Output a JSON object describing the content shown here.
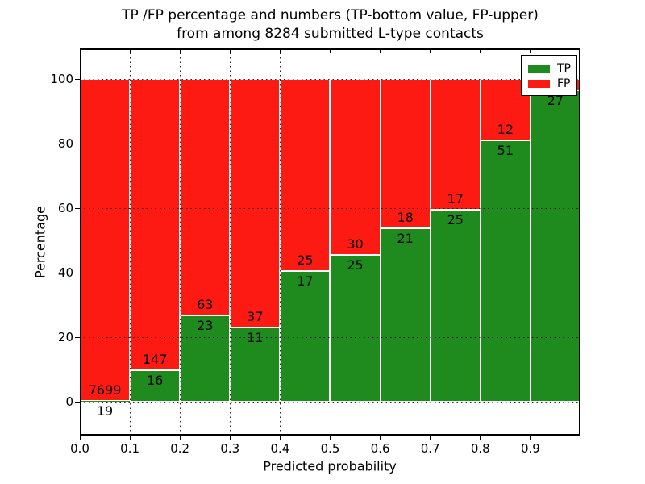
{
  "chart_data": {
    "type": "bar",
    "stacked": true,
    "normalized": "percent",
    "title_lines": [
      "TP /FP percentage and numbers (TP-bottom value, FP-upper)",
      "from among 8284 submitted L-type contacts"
    ],
    "xlabel": "Predicted probability",
    "ylabel": "Percentage",
    "total_contacts": 8284,
    "bin_edges": [
      0.0,
      0.1,
      0.2,
      0.3,
      0.4,
      0.5,
      0.6,
      0.7,
      0.8,
      0.9,
      1.0
    ],
    "series": [
      {
        "name": "TP",
        "color": "#1f8b1f",
        "values": [
          19,
          16,
          23,
          11,
          17,
          25,
          21,
          25,
          51,
          27
        ]
      },
      {
        "name": "FP",
        "color": "#fc1a13",
        "values": [
          7699,
          147,
          63,
          37,
          25,
          30,
          18,
          17,
          12,
          1
        ]
      }
    ],
    "tp_percent": [
      0.25,
      9.82,
      26.74,
      22.92,
      40.48,
      45.45,
      53.85,
      59.52,
      80.95,
      96.43
    ],
    "fp_label_hidden_behind_legend_bins": [
      9
    ],
    "xticks": [
      "0.0",
      "0.1",
      "0.2",
      "0.3",
      "0.4",
      "0.5",
      "0.6",
      "0.7",
      "0.8",
      "0.9"
    ],
    "yticks": [
      "0",
      "20",
      "40",
      "60",
      "80",
      "100"
    ],
    "ytick_values": [
      0,
      20,
      40,
      60,
      80,
      100
    ],
    "xlim": [
      0.0,
      1.0
    ],
    "ylim": [
      -10.5,
      109.5
    ],
    "grid": true,
    "grid_style": "dotted",
    "legend": {
      "position": "upper right",
      "entries": [
        {
          "label": "TP",
          "color": "#1f8b1f"
        },
        {
          "label": "FP",
          "color": "#fc1a13"
        }
      ]
    }
  },
  "colors": {
    "tp": "#1f8b1f",
    "fp": "#fc1a13",
    "text": "#000000",
    "grid": "#000000",
    "background": "#ffffff"
  }
}
